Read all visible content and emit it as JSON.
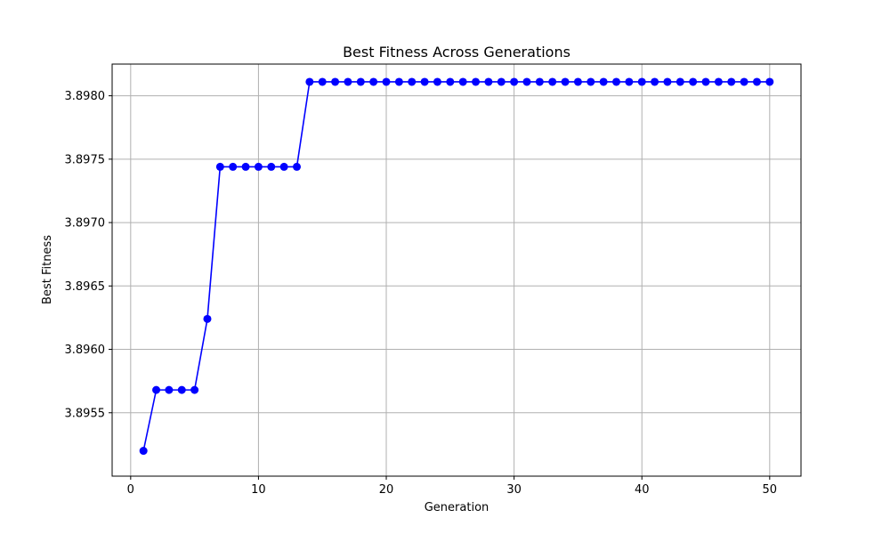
{
  "chart_data": {
    "type": "line",
    "title": "Best Fitness Across Generations",
    "xlabel": "Generation",
    "ylabel": "Best Fitness",
    "xlim": [
      -1.45,
      52.45
    ],
    "ylim": [
      3.895,
      3.89825
    ],
    "x_ticks": [
      0,
      10,
      20,
      30,
      40,
      50
    ],
    "x_tick_labels": [
      "0",
      "10",
      "20",
      "30",
      "40",
      "50"
    ],
    "y_ticks": [
      3.8955,
      3.896,
      3.8965,
      3.897,
      3.8975,
      3.898
    ],
    "y_tick_labels": [
      "3.8955",
      "3.8960",
      "3.8965",
      "3.8970",
      "3.8975",
      "3.8980"
    ],
    "grid": true,
    "series": [
      {
        "color": "#0000ff",
        "marker": "circle",
        "x": [
          1,
          2,
          3,
          4,
          5,
          6,
          7,
          8,
          9,
          10,
          11,
          12,
          13,
          14,
          15,
          16,
          17,
          18,
          19,
          20,
          21,
          22,
          23,
          24,
          25,
          26,
          27,
          28,
          29,
          30,
          31,
          32,
          33,
          34,
          35,
          36,
          37,
          38,
          39,
          40,
          41,
          42,
          43,
          44,
          45,
          46,
          47,
          48,
          49,
          50
        ],
        "values": [
          3.8952,
          3.89568,
          3.89568,
          3.89568,
          3.89568,
          3.89624,
          3.89744,
          3.89744,
          3.89744,
          3.89744,
          3.89744,
          3.89744,
          3.89744,
          3.89811,
          3.89811,
          3.89811,
          3.89811,
          3.89811,
          3.89811,
          3.89811,
          3.89811,
          3.89811,
          3.89811,
          3.89811,
          3.89811,
          3.89811,
          3.89811,
          3.89811,
          3.89811,
          3.89811,
          3.89811,
          3.89811,
          3.89811,
          3.89811,
          3.89811,
          3.89811,
          3.89811,
          3.89811,
          3.89811,
          3.89811,
          3.89811,
          3.89811,
          3.89811,
          3.89811,
          3.89811,
          3.89811,
          3.89811,
          3.89811,
          3.89811,
          3.89811
        ]
      }
    ]
  }
}
